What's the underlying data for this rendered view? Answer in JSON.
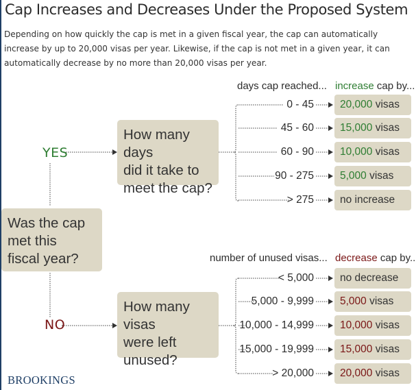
{
  "title": "Cap Increases and Decreases Under the Proposed System",
  "subtitle": "Depending on how quickly the cap is met in a given fiscal year, the cap can automatically increase by up to 20,000 visas per year. Likewise, if the cap is not met in a given year, it can automatically decrease by no more than 20,000 visas per year.",
  "colors": {
    "green": "#2e7d32",
    "red": "#7a1616",
    "box": "#ddd8c6",
    "brand": "#1f3f66"
  },
  "root_question": [
    "Was the cap",
    "met this",
    "fiscal year?"
  ],
  "yes_branch": {
    "label": "YES",
    "question": [
      "How many days",
      "did it take to",
      "meet the cap?"
    ],
    "range_header": "days cap reached...",
    "result_header": {
      "accent": "increase",
      "rest": " cap by..."
    },
    "rows": [
      {
        "range": "0 - 45",
        "value": "20,000",
        "unit": " visas"
      },
      {
        "range": "45 - 60",
        "value": "15,000",
        "unit": " visas"
      },
      {
        "range": "60 - 90",
        "value": "10,000",
        "unit": " visas"
      },
      {
        "range": "90 - 275",
        "value": "5,000",
        "unit": " visas"
      },
      {
        "range": "> 275",
        "value": "",
        "unit": "no increase"
      }
    ]
  },
  "no_branch": {
    "label": "NO",
    "question": [
      "How many visas",
      "were left",
      "unused?"
    ],
    "range_header": "number of unused visas...",
    "result_header": {
      "accent": "decrease",
      "rest": " cap by..."
    },
    "rows": [
      {
        "range": "< 5,000",
        "value": "",
        "unit": "no decrease"
      },
      {
        "range": "5,000 - 9,999",
        "value": "5,000",
        "unit": " visas"
      },
      {
        "range": "10,000 - 14,999",
        "value": "10,000",
        "unit": " visas"
      },
      {
        "range": "15,000 - 19,999",
        "value": "15,000",
        "unit": " visas"
      },
      {
        "range": "> 20,000",
        "value": "20,000",
        "unit": " visas"
      }
    ]
  },
  "brand": "BROOKINGS"
}
